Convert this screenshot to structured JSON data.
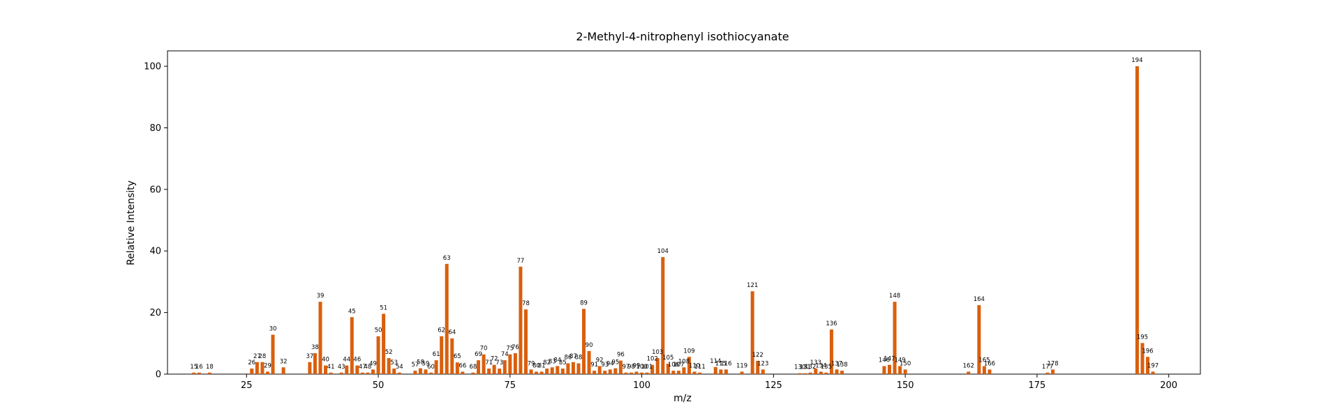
{
  "chart_data": {
    "type": "bar",
    "title": "2-Methyl-4-nitrophenyl isothiocyanate",
    "xlabel": "m/z",
    "ylabel": "Relative Intensity",
    "xlim": [
      10,
      206
    ],
    "ylim": [
      0,
      105
    ],
    "xticks": [
      25,
      50,
      75,
      100,
      125,
      150,
      175,
      200
    ],
    "yticks": [
      0,
      20,
      40,
      60,
      80,
      100
    ],
    "grid": false,
    "bar_color": "#d95f0e",
    "x": [
      15,
      16,
      18,
      26,
      27,
      28,
      29,
      30,
      32,
      37,
      38,
      39,
      40,
      41,
      43,
      44,
      45,
      46,
      47,
      48,
      49,
      50,
      51,
      52,
      53,
      54,
      57,
      58,
      59,
      60,
      61,
      62,
      63,
      64,
      65,
      66,
      68,
      69,
      70,
      71,
      72,
      73,
      74,
      75,
      76,
      77,
      78,
      79,
      80,
      81,
      82,
      83,
      84,
      85,
      86,
      87,
      88,
      89,
      90,
      91,
      92,
      93,
      94,
      95,
      96,
      97,
      98,
      99,
      100,
      101,
      102,
      103,
      104,
      105,
      106,
      107,
      108,
      109,
      110,
      111,
      114,
      115,
      116,
      119,
      121,
      122,
      123,
      130,
      131,
      132,
      133,
      134,
      135,
      136,
      137,
      138,
      146,
      147,
      148,
      149,
      150,
      162,
      164,
      165,
      166,
      177,
      178,
      194,
      195,
      196,
      197
    ],
    "y": [
      0.5,
      0.5,
      0.5,
      1.8,
      3.9,
      3.9,
      0.8,
      12.8,
      2.2,
      3.9,
      6.8,
      23.5,
      2.8,
      0.5,
      0.5,
      2.8,
      18.5,
      2.8,
      0.5,
      0.5,
      1.5,
      12.3,
      19.6,
      5.2,
      1.8,
      0.5,
      1.1,
      1.9,
      1.5,
      0.5,
      4.5,
      12.3,
      35.8,
      11.6,
      3.8,
      0.8,
      0.5,
      4.5,
      6.4,
      1.8,
      3.0,
      1.8,
      4.5,
      6.4,
      6.8,
      34.9,
      21.0,
      1.5,
      0.8,
      0.8,
      1.8,
      2.2,
      2.6,
      1.8,
      3.5,
      3.9,
      3.5,
      21.2,
      7.5,
      1.1,
      2.6,
      1.1,
      1.5,
      1.9,
      4.4,
      0.5,
      0.5,
      0.8,
      0.5,
      0.5,
      3.0,
      5.2,
      38.0,
      3.4,
      1.1,
      1.1,
      2.2,
      5.6,
      0.8,
      0.5,
      2.3,
      1.5,
      1.5,
      0.8,
      26.9,
      4.3,
      1.5,
      0.3,
      0.3,
      0.5,
      1.8,
      0.8,
      0.5,
      14.5,
      1.5,
      1.1,
      2.6,
      3.0,
      23.5,
      2.6,
      1.5,
      0.8,
      22.4,
      2.6,
      1.5,
      0.5,
      1.5,
      100,
      10.1,
      5.6,
      0.8
    ]
  }
}
